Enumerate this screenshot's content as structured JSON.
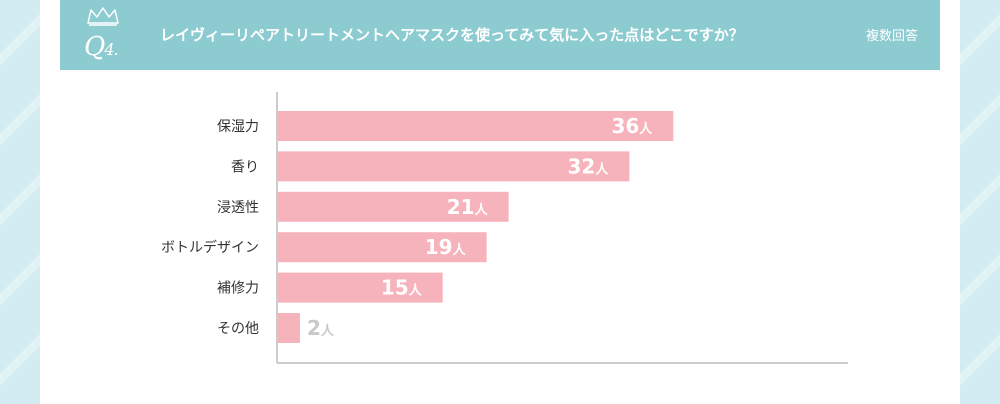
{
  "header": {
    "q_prefix": "Q",
    "q_number": "4.",
    "question": "レイヴィーリペアトリートメントヘアマスクを使ってみて気に入った点はどこですか？",
    "note": "複数回答"
  },
  "colors": {
    "header_bg": "#8ccbd0",
    "bar": "#f7b3bb",
    "value_label": "#ffffff",
    "value_label_outside": "#c9c9c9",
    "category_label": "#333333",
    "axis": "#bbbbbb"
  },
  "chart_data": {
    "type": "bar",
    "orientation": "horizontal",
    "categories": [
      "保湿力",
      "香り",
      "浸透性",
      "ボトルデザイン",
      "補修力",
      "その他"
    ],
    "values": [
      36,
      32,
      21,
      19,
      15,
      2
    ],
    "value_labels": [
      "36人",
      "32人",
      "21人",
      "19人",
      "15人",
      "2人"
    ],
    "unit": "人",
    "xlim": [
      0,
      52
    ],
    "grid": false,
    "legend": "none"
  }
}
